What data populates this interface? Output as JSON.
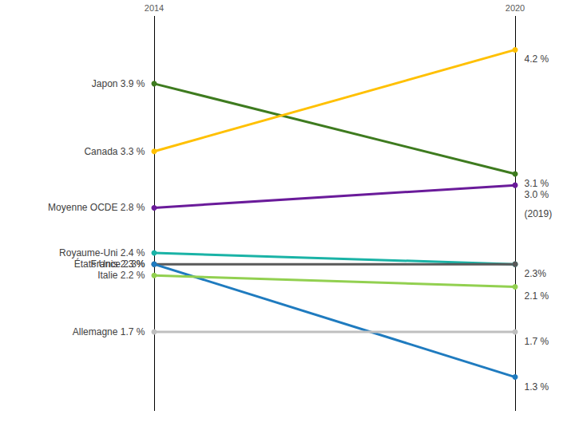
{
  "chart_data": {
    "type": "line",
    "categories": [
      "2014",
      "2020"
    ],
    "ylim": [
      1.0,
      4.5
    ],
    "tick_labels": false,
    "grid": true,
    "marker": "circle",
    "line_style": "solid",
    "series": [
      {
        "name": "Japon",
        "color": "#3e7b1f",
        "values": [
          3.9,
          3.1
        ],
        "value_labels": [
          "3.9 %",
          "3.1 %"
        ]
      },
      {
        "name": "Canada",
        "color": "#ffc000",
        "values": [
          3.3,
          4.2
        ],
        "value_labels": [
          "3.3 %",
          "4.2 %"
        ]
      },
      {
        "name": "Moyenne OCDE",
        "color": "#6a1b9a",
        "values": [
          2.8,
          3.0
        ],
        "value_labels": [
          "2.8 %",
          "3.0 %\n(2019)"
        ]
      },
      {
        "name": "Royaume-Uni",
        "color": "#1ab3a6",
        "values": [
          2.4,
          2.3
        ],
        "value_labels": [
          "2.4 %",
          "2.3%"
        ]
      },
      {
        "name": "France",
        "color": "#595959",
        "values": [
          2.3,
          2.3
        ],
        "value_labels": [
          "2.3%",
          null
        ]
      },
      {
        "name": "États Unis",
        "color": "#1f7bbf",
        "values": [
          2.3,
          1.3
        ],
        "value_labels": [
          "2.3 %",
          "1.3 %"
        ]
      },
      {
        "name": "Italie",
        "color": "#92d050",
        "values": [
          2.2,
          2.1
        ],
        "value_labels": [
          "2.2 %",
          "2.1 %"
        ]
      },
      {
        "name": "Allemagne",
        "color": "#bfbfbf",
        "values": [
          1.7,
          1.7
        ],
        "value_labels": [
          "1.7 %",
          "1.7 %"
        ]
      }
    ]
  }
}
